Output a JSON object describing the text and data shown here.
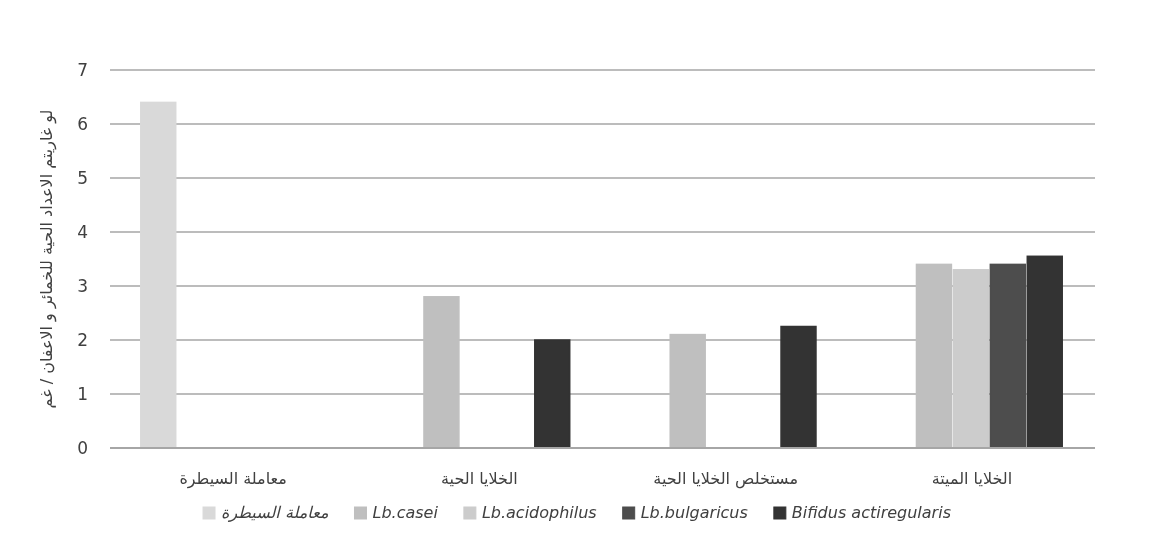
{
  "chart_data": {
    "type": "bar",
    "ylabel": "لو غاريتم الاعداد الحية للخمائر و الاعفان / غم",
    "categories": [
      "معاملة السيطرة",
      "الخلايا الحية",
      "مستخلص الخلايا الحية",
      "الخلايا الميتة"
    ],
    "series": [
      {
        "name": "معاملة السيطرة",
        "color": "#d9d9d9",
        "values": [
          6.4,
          null,
          null,
          null
        ]
      },
      {
        "name": "Lb.casei",
        "color": "#bfbfbf",
        "values": [
          null,
          2.8,
          2.1,
          3.4
        ]
      },
      {
        "name": "Lb.acidophilus",
        "color": "#cccccc",
        "values": [
          null,
          0,
          0,
          3.3
        ]
      },
      {
        "name": "Lb.bulgaricus",
        "color": "#4d4d4d",
        "values": [
          null,
          0,
          0,
          3.4
        ]
      },
      {
        "name": "Bifidus actiregularis",
        "color": "#333333",
        "values": [
          null,
          2.0,
          2.25,
          3.55
        ]
      }
    ],
    "ylim": [
      0,
      7
    ],
    "yticks": [
      0,
      1,
      2,
      3,
      4,
      5,
      6,
      7
    ],
    "grid": "y",
    "legend": "bottom"
  }
}
